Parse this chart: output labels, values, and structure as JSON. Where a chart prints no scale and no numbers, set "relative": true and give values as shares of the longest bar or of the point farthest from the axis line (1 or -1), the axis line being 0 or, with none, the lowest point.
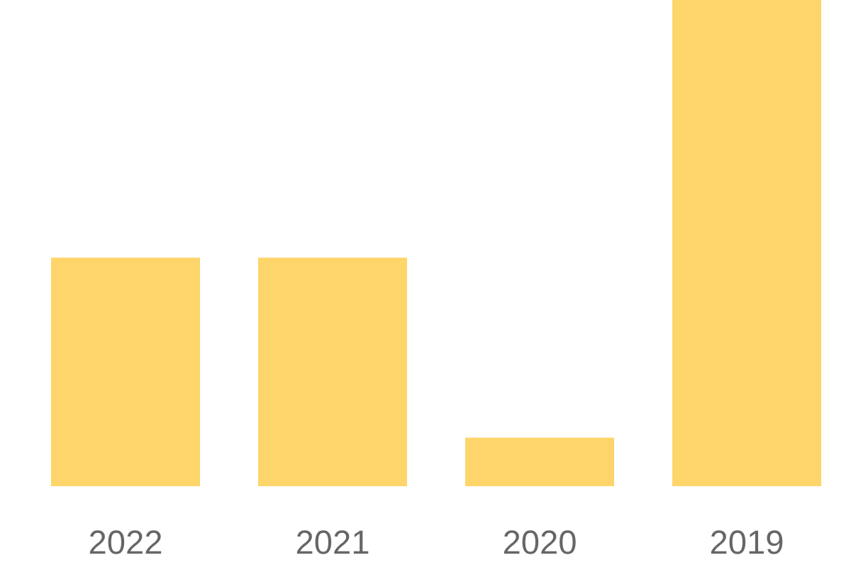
{
  "chart_data": {
    "type": "bar",
    "relative": true,
    "categories": [
      "2022",
      "2021",
      "2020",
      "2019"
    ],
    "values": [
      0.47,
      0.47,
      0.1,
      1
    ],
    "color": "#fdd56a",
    "grid": false,
    "legend": false
  }
}
